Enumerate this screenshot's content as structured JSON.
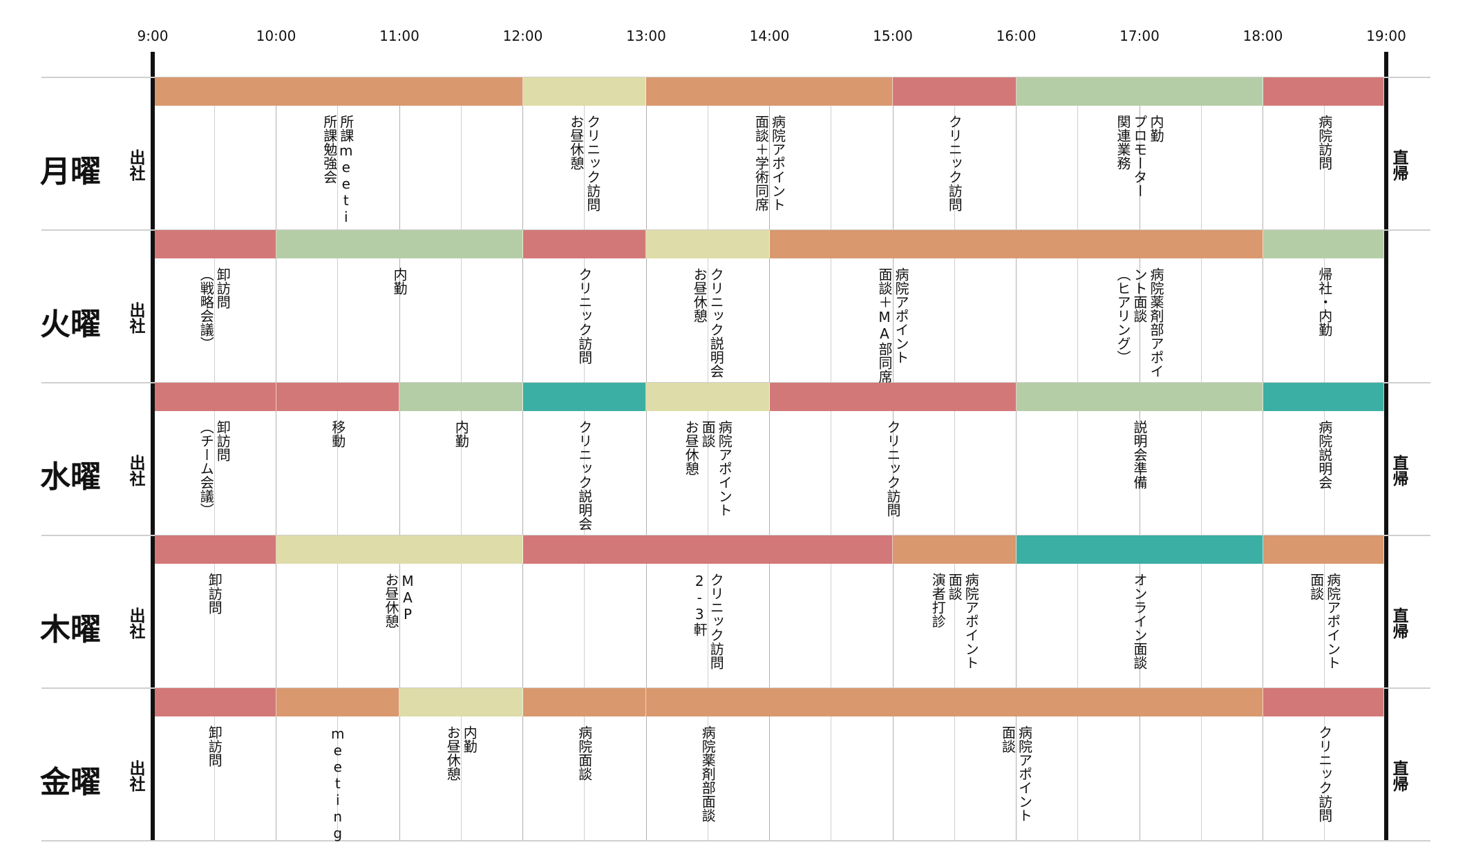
{
  "colors": {
    "orange": "#D9986E",
    "red": "#D37878",
    "yellow": "#DEDCA8",
    "green": "#B5CDA7",
    "teal": "#3BAFA3"
  },
  "times": [
    "9:00",
    "10:00",
    "11:00",
    "12:00",
    "13:00",
    "14:00",
    "15:00",
    "16:00",
    "17:00",
    "18:00",
    "19:00"
  ],
  "days": [
    {
      "name": "月曜",
      "start": "出社",
      "end": "直帰",
      "blocks": [
        {
          "from": 9,
          "to": 12,
          "color": "orange"
        },
        {
          "from": 12,
          "to": 13,
          "color": "yellow"
        },
        {
          "from": 13,
          "to": 15,
          "color": "orange"
        },
        {
          "from": 15,
          "to": 16,
          "color": "red"
        },
        {
          "from": 16,
          "to": 18,
          "color": "green"
        },
        {
          "from": 18,
          "to": 19,
          "color": "red"
        }
      ],
      "labels": [
        {
          "at": 10.5,
          "text": "所課meeting\n所課勉強会"
        },
        {
          "at": 12.5,
          "text": "クリニック訪問\nお昼休憩"
        },
        {
          "at": 14,
          "text": "病院アポイント\n面談＋学術同席"
        },
        {
          "at": 15.5,
          "text": "クリニック訪問"
        },
        {
          "at": 17,
          "text": "内勤\nプロモーター\n関連業務"
        },
        {
          "at": 18.5,
          "text": "病院訪問"
        }
      ]
    },
    {
      "name": "火曜",
      "start": "出社",
      "end": "",
      "blocks": [
        {
          "from": 9,
          "to": 10,
          "color": "red"
        },
        {
          "from": 10,
          "to": 12,
          "color": "green"
        },
        {
          "from": 12,
          "to": 13,
          "color": "red"
        },
        {
          "from": 13,
          "to": 14,
          "color": "yellow"
        },
        {
          "from": 14,
          "to": 18,
          "color": "orange"
        },
        {
          "from": 18,
          "to": 19,
          "color": "green"
        }
      ],
      "labels": [
        {
          "at": 9.5,
          "text": "卸訪問\n（戦略会議）"
        },
        {
          "at": 11,
          "text": "内勤"
        },
        {
          "at": 12.5,
          "text": "クリニック訪問"
        },
        {
          "at": 13.5,
          "text": "クリニック説明会\nお昼休憩"
        },
        {
          "at": 15,
          "text": "病院アポイント\n面談＋MA部同席"
        },
        {
          "at": 17,
          "text": "病院薬剤部アポイ\nント面談\n（ヒアリング）"
        },
        {
          "at": 18.5,
          "text": "帰社・内勤"
        }
      ]
    },
    {
      "name": "水曜",
      "start": "出社",
      "end": "直帰",
      "blocks": [
        {
          "from": 9,
          "to": 10,
          "color": "red"
        },
        {
          "from": 10,
          "to": 11,
          "color": "red"
        },
        {
          "from": 11,
          "to": 12,
          "color": "green"
        },
        {
          "from": 12,
          "to": 13,
          "color": "teal"
        },
        {
          "from": 13,
          "to": 14,
          "color": "yellow"
        },
        {
          "from": 14,
          "to": 16,
          "color": "red"
        },
        {
          "from": 16,
          "to": 18,
          "color": "green"
        },
        {
          "from": 18,
          "to": 19,
          "color": "teal"
        }
      ],
      "labels": [
        {
          "at": 9.5,
          "text": "卸訪問\n（チーム会議）"
        },
        {
          "at": 10.5,
          "text": "移動"
        },
        {
          "at": 11.5,
          "text": "内勤"
        },
        {
          "at": 12.5,
          "text": "クリニック説明会"
        },
        {
          "at": 13.5,
          "text": "病院アポイント\n面談\nお昼休憩"
        },
        {
          "at": 15,
          "text": "クリニック訪問"
        },
        {
          "at": 17,
          "text": "説明会準備"
        },
        {
          "at": 18.5,
          "text": "病院説明会"
        }
      ]
    },
    {
      "name": "木曜",
      "start": "出社",
      "end": "直帰",
      "blocks": [
        {
          "from": 9,
          "to": 10,
          "color": "red"
        },
        {
          "from": 10,
          "to": 12,
          "color": "yellow"
        },
        {
          "from": 12,
          "to": 15,
          "color": "red"
        },
        {
          "from": 15,
          "to": 16,
          "color": "orange"
        },
        {
          "from": 16,
          "to": 18,
          "color": "teal"
        },
        {
          "from": 18,
          "to": 19,
          "color": "orange"
        }
      ],
      "labels": [
        {
          "at": 9.5,
          "text": "卸訪問"
        },
        {
          "at": 11,
          "text": "MAP\nお昼休憩"
        },
        {
          "at": 13.5,
          "text": "クリニック訪問\n2-3軒"
        },
        {
          "at": 15.5,
          "text": "病院アポイント\n面談\n演者打診"
        },
        {
          "at": 17,
          "text": "オンライン面談"
        },
        {
          "at": 18.5,
          "text": "病院アポイント\n面談"
        }
      ]
    },
    {
      "name": "金曜",
      "start": "出社",
      "end": "直帰",
      "blocks": [
        {
          "from": 9,
          "to": 10,
          "color": "red"
        },
        {
          "from": 10,
          "to": 11,
          "color": "orange"
        },
        {
          "from": 11,
          "to": 12,
          "color": "yellow"
        },
        {
          "from": 12,
          "to": 13,
          "color": "orange"
        },
        {
          "from": 13,
          "to": 18,
          "color": "orange"
        },
        {
          "from": 18,
          "to": 19,
          "color": "red"
        }
      ],
      "labels": [
        {
          "at": 9.5,
          "text": "卸訪問"
        },
        {
          "at": 10.5,
          "text": "meeting"
        },
        {
          "at": 11.5,
          "text": "内勤\nお昼休憩"
        },
        {
          "at": 12.5,
          "text": "病院面談"
        },
        {
          "at": 13.5,
          "text": "病院薬剤部面談"
        },
        {
          "at": 16,
          "text": "病院アポイント\n面談"
        },
        {
          "at": 18.5,
          "text": "クリニック訪問"
        }
      ]
    }
  ]
}
